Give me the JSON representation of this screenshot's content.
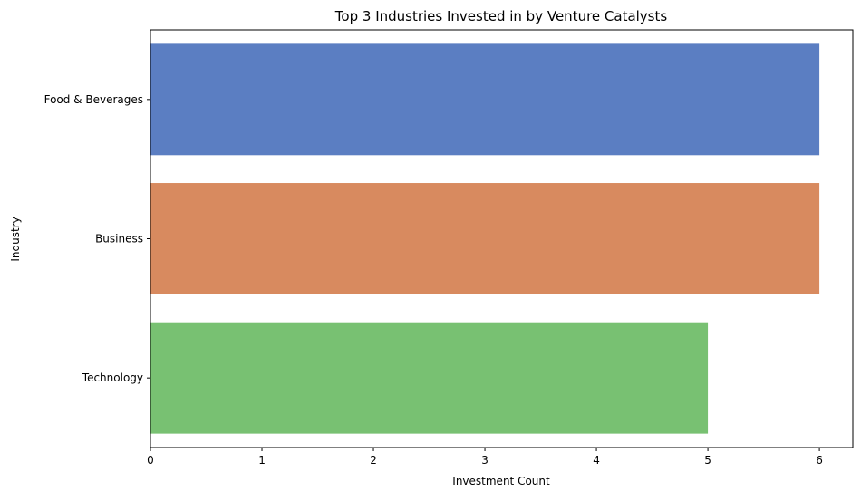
{
  "chart_data": {
    "type": "bar",
    "orientation": "horizontal",
    "title": "Top 3 Industries Invested in by Venture Catalysts",
    "xlabel": "Investment Count",
    "ylabel": "Industry",
    "categories": [
      "Food & Beverages",
      "Business",
      "Technology"
    ],
    "values": [
      6,
      6,
      5
    ],
    "colors": [
      "#5b7ec2",
      "#d88a5f",
      "#78c172"
    ],
    "xlim": [
      0,
      6.3
    ],
    "xticks": [
      0,
      1,
      2,
      3,
      4,
      5,
      6
    ],
    "grid": false,
    "legend": "none"
  }
}
